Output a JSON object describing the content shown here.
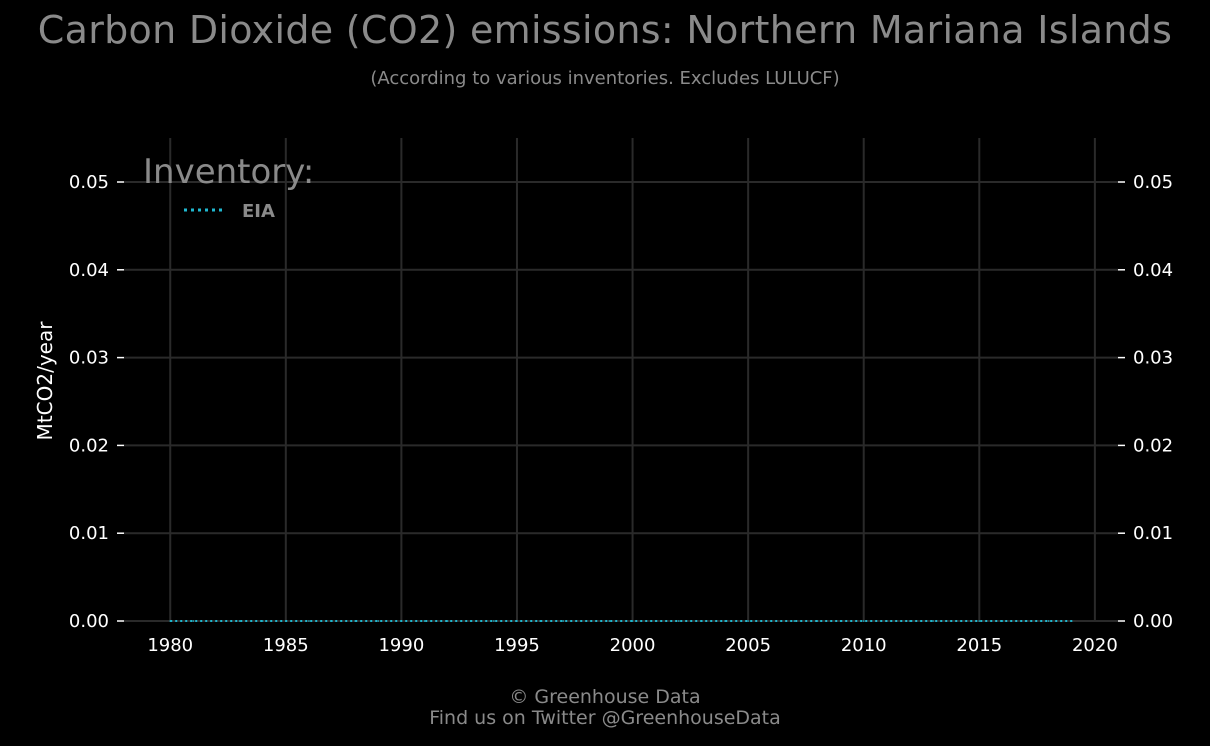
{
  "title": "Carbon Dioxide (CO2) emissions: Northern Mariana Islands",
  "subtitle": "(According to various inventories. Excludes LULUCF)",
  "footer": {
    "line1": "© Greenhouse Data",
    "line2": "Find us on Twitter @GreenhouseData"
  },
  "colors": {
    "background": "#000000",
    "grid": "#2a2a2a",
    "text_muted": "#8a8a8a",
    "series_eia": "#1fb8d0"
  },
  "chart_data": {
    "type": "line",
    "title": "Carbon Dioxide (CO2) emissions: Northern Mariana Islands",
    "subtitle": "(According to various inventories. Excludes LULUCF)",
    "xlabel": "",
    "ylabel": "MtCO2/year",
    "xlim": [
      1978,
      2021
    ],
    "ylim": [
      0.0,
      0.05
    ],
    "xticks": [
      "1980",
      "1985",
      "1990",
      "1995",
      "2000",
      "2005",
      "2010",
      "2015",
      "2020"
    ],
    "yticks": [
      "0.00",
      "0.01",
      "0.02",
      "0.03",
      "0.04",
      "0.05"
    ],
    "grid": true,
    "secondary_y_axis": true,
    "legend": {
      "title": "Inventory:",
      "position": "top-left"
    },
    "series": [
      {
        "name": "EIA",
        "style": "dotted",
        "color": "#1fb8d0",
        "x": [
          1980,
          1981,
          1982,
          1983,
          1984,
          1985,
          1986,
          1987,
          1988,
          1989,
          1990,
          1991,
          1992,
          1993,
          1994,
          1995,
          1996,
          1997,
          1998,
          1999,
          2000,
          2001,
          2002,
          2003,
          2004,
          2005,
          2006,
          2007,
          2008,
          2009,
          2010,
          2011,
          2012,
          2013,
          2014,
          2015,
          2016,
          2017,
          2018,
          2019
        ],
        "values": [
          0,
          0,
          0,
          0,
          0,
          0,
          0,
          0,
          0,
          0,
          0,
          0,
          0,
          0,
          0,
          0,
          0,
          0,
          0,
          0,
          0,
          0,
          0,
          0,
          0,
          0,
          0,
          0,
          0,
          0,
          0,
          0,
          0,
          0,
          0,
          0,
          0,
          0,
          0,
          0
        ]
      }
    ]
  }
}
